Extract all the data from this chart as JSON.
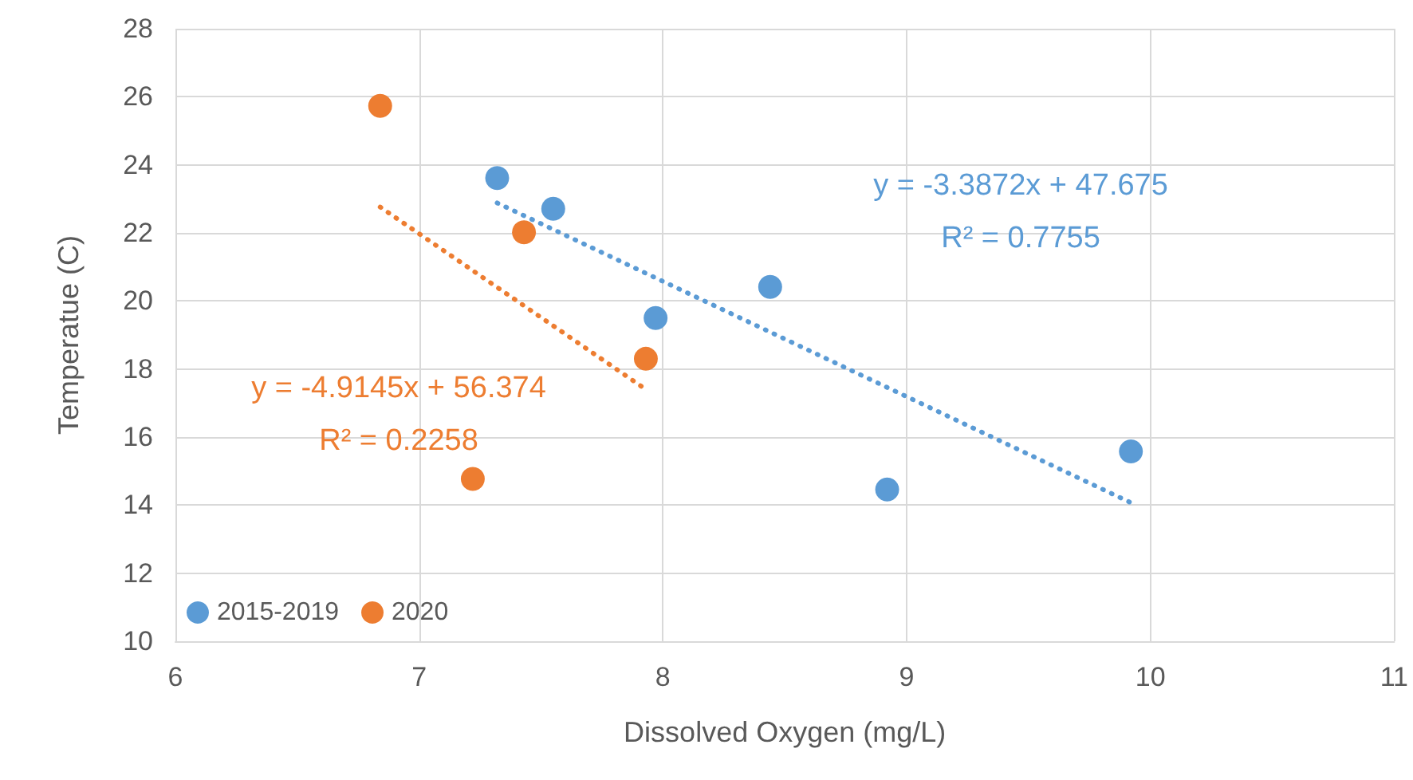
{
  "chart_data": {
    "type": "scatter",
    "xlabel": "Dissolved Oxygen (mg/L)",
    "ylabel": "Temperatue (C)",
    "xlim": [
      6,
      11
    ],
    "xticks": [
      6,
      7,
      8,
      9,
      10,
      11
    ],
    "ylim": [
      10,
      28
    ],
    "yticks": [
      10,
      12,
      14,
      16,
      18,
      20,
      22,
      24,
      26,
      28
    ],
    "grid": true,
    "legend": "bottom left",
    "marker": "circle",
    "series": [
      {
        "name": "2015-2019",
        "color": "#5b9bd5",
        "x": [
          7.32,
          7.55,
          7.97,
          8.44,
          8.92,
          9.92
        ],
        "values": [
          23.61,
          22.71,
          19.5,
          20.41,
          14.46,
          15.58
        ]
      },
      {
        "name": "2020",
        "color": "#ed7d31",
        "x": [
          6.84,
          7.43,
          7.93,
          7.22
        ],
        "values": [
          25.73,
          22.02,
          18.3,
          14.77
        ]
      },
      {
        "type": "line",
        "color": "#5b9bd5",
        "marker": "none",
        "line_style": "dotted",
        "x": [
          7.32,
          9.92
        ],
        "values": [
          22.88,
          14.07
        ]
      },
      {
        "type": "line",
        "color": "#ed7d31",
        "marker": "none",
        "line_style": "dotted",
        "x": [
          6.84,
          7.93
        ],
        "values": [
          22.76,
          17.4
        ]
      }
    ],
    "annotations": [
      "y = -3.3872x + 47.675\nR² = 0.7755",
      "y = -4.9145x + 56.374\nR² = 0.2258"
    ]
  }
}
